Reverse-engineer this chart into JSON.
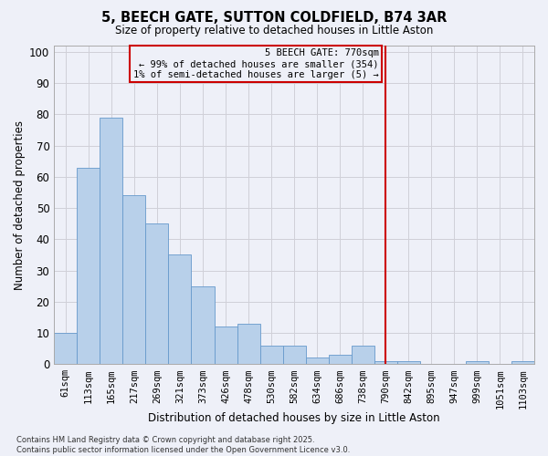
{
  "title_line1": "5, BEECH GATE, SUTTON COLDFIELD, B74 3AR",
  "title_line2": "Size of property relative to detached houses in Little Aston",
  "xlabel": "Distribution of detached houses by size in Little Aston",
  "ylabel": "Number of detached properties",
  "categories": [
    "61sqm",
    "113sqm",
    "165sqm",
    "217sqm",
    "269sqm",
    "321sqm",
    "373sqm",
    "426sqm",
    "478sqm",
    "530sqm",
    "582sqm",
    "634sqm",
    "686sqm",
    "738sqm",
    "790sqm",
    "842sqm",
    "895sqm",
    "947sqm",
    "999sqm",
    "1051sqm",
    "1103sqm"
  ],
  "values": [
    10,
    63,
    79,
    54,
    45,
    35,
    25,
    12,
    13,
    6,
    6,
    2,
    3,
    6,
    1,
    1,
    0,
    0,
    1,
    0,
    1
  ],
  "bar_color": "#b8d0ea",
  "bar_edge_color": "#6699cc",
  "grid_color": "#d0d0d8",
  "vline_index": 14,
  "vline_color": "#cc0000",
  "annotation_text": "5 BEECH GATE: 770sqm\n← 99% of detached houses are smaller (354)\n1% of semi-detached houses are larger (5) →",
  "annotation_box_color": "#cc0000",
  "background_color": "#eef0f8",
  "ylim": [
    0,
    102
  ],
  "yticks": [
    0,
    10,
    20,
    30,
    40,
    50,
    60,
    70,
    80,
    90,
    100
  ],
  "footer_line1": "Contains HM Land Registry data © Crown copyright and database right 2025.",
  "footer_line2": "Contains public sector information licensed under the Open Government Licence v3.0."
}
